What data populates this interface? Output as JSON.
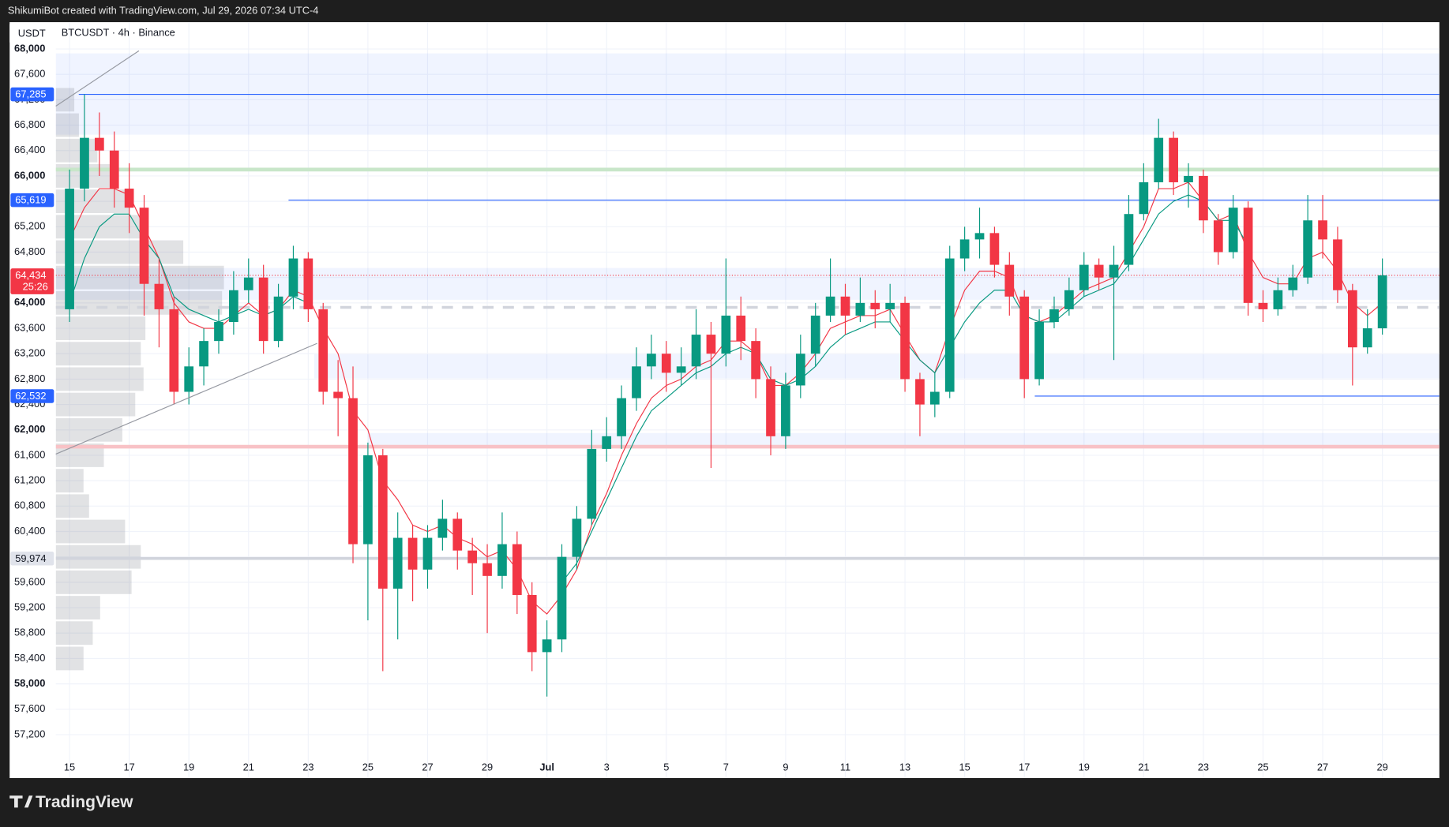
{
  "header": {
    "caption": "ShikumiBot created with TradingView.com, Jul 29, 2026 07:34 UTC-4",
    "currency": "USDT",
    "symbol": "BTCUSDT · 4h · Binance"
  },
  "footer": {
    "brand": "TradingView"
  },
  "chart_data": {
    "type": "candlestick",
    "up_color": "#089981",
    "down_color": "#f23645",
    "xlim": [
      -0.46,
      45.91
    ],
    "ylim": [
      56516,
      68422
    ],
    "grid": true,
    "xticks": [
      {
        "value": 0,
        "label": "15"
      },
      {
        "value": 2,
        "label": "17"
      },
      {
        "value": 4,
        "label": "19"
      },
      {
        "value": 6,
        "label": "21"
      },
      {
        "value": 8,
        "label": "23"
      },
      {
        "value": 10,
        "label": "25"
      },
      {
        "value": 12,
        "label": "27"
      },
      {
        "value": 14,
        "label": "29"
      },
      {
        "value": 16,
        "label": "Jul"
      },
      {
        "value": 18,
        "label": "3"
      },
      {
        "value": 20,
        "label": "5"
      },
      {
        "value": 22,
        "label": "7"
      },
      {
        "value": 24,
        "label": "9"
      },
      {
        "value": 26,
        "label": "11"
      },
      {
        "value": 28,
        "label": "13"
      },
      {
        "value": 30,
        "label": "15"
      },
      {
        "value": 32,
        "label": "17"
      },
      {
        "value": 34,
        "label": "19"
      },
      {
        "value": 36,
        "label": "21"
      },
      {
        "value": 38,
        "label": "23"
      },
      {
        "value": 40,
        "label": "25"
      },
      {
        "value": 42,
        "label": "27"
      },
      {
        "value": 44,
        "label": "29"
      }
    ],
    "yticks": [
      {
        "value": 57200,
        "label": "57,200"
      },
      {
        "value": 57600,
        "label": "57,600"
      },
      {
        "value": 58000,
        "label": "58,000"
      },
      {
        "value": 58400,
        "label": "58,400"
      },
      {
        "value": 58800,
        "label": "58,800"
      },
      {
        "value": 59200,
        "label": "59,200"
      },
      {
        "value": 59600,
        "label": "59,600"
      },
      {
        "value": 60000,
        "label": "60,000"
      },
      {
        "value": 60400,
        "label": "60,400"
      },
      {
        "value": 60800,
        "label": "60,800"
      },
      {
        "value": 61200,
        "label": "61,200"
      },
      {
        "value": 61600,
        "label": "61,600"
      },
      {
        "value": 62000,
        "label": "62,000"
      },
      {
        "value": 62400,
        "label": "62,400"
      },
      {
        "value": 62800,
        "label": "62,800"
      },
      {
        "value": 63200,
        "label": "63,200"
      },
      {
        "value": 63600,
        "label": "63,600"
      },
      {
        "value": 64000,
        "label": "64,000"
      },
      {
        "value": 64400,
        "label": "64,400"
      },
      {
        "value": 64800,
        "label": "64,800"
      },
      {
        "value": 65200,
        "label": "65,200"
      },
      {
        "value": 65600,
        "label": "65,600"
      },
      {
        "value": 66000,
        "label": "66,000"
      },
      {
        "value": 66400,
        "label": "66,400"
      },
      {
        "value": 66800,
        "label": "66,800"
      },
      {
        "value": 67200,
        "label": "67,200"
      },
      {
        "value": 67600,
        "label": "67,600"
      },
      {
        "value": 68000,
        "label": "68,000"
      }
    ],
    "x": [
      0,
      0.5,
      1,
      1.5,
      2,
      2.5,
      3,
      3.5,
      4,
      4.5,
      5,
      5.5,
      6,
      6.5,
      7,
      7.5,
      8,
      8.5,
      9,
      9.5,
      10,
      10.5,
      11,
      11.5,
      12,
      12.5,
      13,
      13.5,
      14,
      14.5,
      15,
      15.5,
      16,
      16.5,
      17,
      17.5,
      18,
      18.5,
      19,
      19.5,
      20,
      20.5,
      21,
      21.5,
      22,
      22.5,
      23,
      23.5,
      24,
      24.5,
      25,
      25.5,
      26,
      26.5,
      27,
      27.5,
      28,
      28.5,
      29,
      29.5,
      30,
      30.5,
      31,
      31.5,
      32,
      32.5,
      33,
      33.5,
      34,
      34.5,
      35,
      35.5,
      36,
      36.5,
      37,
      37.5,
      38,
      38.5,
      39,
      39.5,
      40,
      40.5,
      41,
      41.5,
      42,
      42.5,
      43,
      43.5,
      44
    ],
    "open": [
      63900,
      65800,
      66600,
      66400,
      65800,
      65500,
      64300,
      63900,
      62600,
      63000,
      63400,
      63700,
      64200,
      64400,
      63400,
      64100,
      64700,
      63900,
      62600,
      62500,
      60200,
      61600,
      59500,
      60300,
      59800,
      60300,
      60600,
      60100,
      59900,
      59700,
      60200,
      59400,
      58500,
      58700,
      60000,
      60600,
      61700,
      61900,
      62500,
      63000,
      63200,
      62900,
      63000,
      63500,
      63200,
      63800,
      63400,
      62800,
      61900,
      62700,
      63200,
      63800,
      64100,
      63800,
      64000,
      63900,
      64000,
      62800,
      62400,
      62600,
      64700,
      65000,
      65100,
      64600,
      64100,
      62800,
      63700,
      63900,
      64200,
      64600,
      64400,
      64600,
      65400,
      65900,
      66600,
      65900,
      66000,
      65300,
      64800,
      65500,
      64000,
      63900,
      64200,
      64400,
      65300,
      65000,
      64200,
      63300,
      63600
    ],
    "high": [
      66100,
      67285,
      67000,
      66700,
      66200,
      65700,
      64700,
      64100,
      63300,
      63600,
      63900,
      64500,
      64700,
      64600,
      64300,
      64900,
      64800,
      64000,
      63100,
      63000,
      61800,
      61700,
      60700,
      60500,
      60500,
      60900,
      60700,
      60300,
      60200,
      60700,
      60400,
      59600,
      59000,
      60200,
      60800,
      62000,
      62200,
      62700,
      63300,
      63500,
      63400,
      63300,
      63900,
      63700,
      64700,
      64100,
      63600,
      63000,
      62900,
      63500,
      64000,
      64700,
      64300,
      64400,
      64200,
      64300,
      64100,
      62900,
      62900,
      64900,
      65200,
      65500,
      65200,
      64800,
      64200,
      63900,
      64100,
      64400,
      64800,
      64700,
      64900,
      65700,
      66200,
      66900,
      66700,
      66200,
      66100,
      65400,
      65700,
      65600,
      64200,
      64400,
      64600,
      65700,
      65700,
      65200,
      64300,
      63900,
      64700
    ],
    "low": [
      63700,
      65600,
      66000,
      65500,
      65100,
      63800,
      63300,
      62400,
      62400,
      62700,
      63200,
      63500,
      64000,
      63200,
      63300,
      63900,
      63700,
      62400,
      61900,
      59900,
      59000,
      58200,
      58700,
      59300,
      59500,
      60100,
      59800,
      59400,
      58800,
      59500,
      59100,
      58200,
      57800,
      58500,
      59800,
      60500,
      61500,
      61700,
      62300,
      62800,
      62600,
      62700,
      62800,
      61400,
      63000,
      63100,
      62500,
      61600,
      61700,
      62500,
      63000,
      63700,
      63500,
      63700,
      63600,
      63700,
      62600,
      61900,
      62200,
      62500,
      64500,
      64700,
      64400,
      63800,
      62500,
      62700,
      63600,
      63800,
      64100,
      64200,
      63100,
      64500,
      65300,
      65800,
      65700,
      65500,
      65100,
      64600,
      64700,
      63800,
      63700,
      63800,
      64100,
      64300,
      64700,
      64000,
      62700,
      63200,
      63500
    ],
    "close": [
      65800,
      66600,
      66400,
      65800,
      65500,
      64300,
      63900,
      62600,
      63000,
      63400,
      63700,
      64200,
      64400,
      63400,
      64100,
      64700,
      63900,
      62600,
      62500,
      60200,
      61600,
      59500,
      60300,
      59800,
      60300,
      60600,
      60100,
      59900,
      59700,
      60200,
      59400,
      58500,
      58700,
      60000,
      60600,
      61700,
      61900,
      62500,
      63000,
      63200,
      62900,
      63000,
      63500,
      63200,
      63800,
      63400,
      62800,
      61900,
      62700,
      63200,
      63800,
      64100,
      63800,
      64000,
      63900,
      64000,
      62800,
      62400,
      62600,
      64700,
      65000,
      65100,
      64600,
      64100,
      62800,
      63700,
      63900,
      64200,
      64600,
      64400,
      64600,
      65400,
      65900,
      66600,
      65900,
      66000,
      65300,
      64800,
      65500,
      64000,
      63900,
      64200,
      64400,
      65300,
      65000,
      64200,
      63300,
      63600,
      64434
    ],
    "moving_averages": [
      {
        "color": "#f23645",
        "values": [
          65000,
          65500,
          65800,
          65800,
          65700,
          65200,
          64700,
          64000,
          63700,
          63600,
          63600,
          63800,
          64000,
          63800,
          63900,
          64200,
          64100,
          63600,
          63200,
          62300,
          62000,
          61200,
          60900,
          60500,
          60400,
          60500,
          60300,
          60200,
          60000,
          60100,
          59800,
          59300,
          59100,
          59400,
          59800,
          60500,
          61000,
          61600,
          62100,
          62500,
          62700,
          62800,
          63000,
          63100,
          63400,
          63400,
          63200,
          62700,
          62700,
          62900,
          63200,
          63600,
          63700,
          63800,
          63800,
          63900,
          63500,
          63100,
          62900,
          63600,
          64200,
          64500,
          64500,
          64400,
          63800,
          63700,
          63800,
          64000,
          64200,
          64300,
          64400,
          64800,
          65200,
          65800,
          65800,
          65900,
          65600,
          65300,
          65400,
          64800,
          64400,
          64300,
          64300,
          64700,
          64800,
          64500,
          64000,
          63800,
          64000
        ]
      },
      {
        "color": "#089981",
        "values": [
          64000,
          64700,
          65200,
          65400,
          65400,
          65000,
          64700,
          64100,
          63900,
          63800,
          63700,
          63800,
          63900,
          63800,
          63900,
          64100,
          64000,
          null,
          null,
          null,
          null,
          null,
          null,
          null,
          null,
          null,
          null,
          null,
          null,
          null,
          null,
          null,
          null,
          59600,
          59900,
          60400,
          60900,
          61400,
          61900,
          62300,
          62500,
          62700,
          62900,
          63000,
          63200,
          63300,
          63200,
          62800,
          62700,
          62800,
          63000,
          63300,
          63500,
          63600,
          63700,
          63700,
          63400,
          63100,
          62900,
          63300,
          63700,
          64000,
          64200,
          64200,
          63800,
          63700,
          63700,
          63900,
          64100,
          64200,
          64300,
          64600,
          65000,
          65400,
          65600,
          65700,
          65600,
          65300,
          65300,
          64900,
          null,
          null,
          null,
          null,
          null,
          null,
          null,
          null,
          null
        ]
      }
    ],
    "volume_profile": {
      "prices": [
        58400,
        58800,
        59200,
        59600,
        60000,
        60400,
        60800,
        61200,
        61600,
        62000,
        62400,
        62800,
        63200,
        63600,
        64000,
        64400,
        64800,
        65200,
        65600,
        66000,
        66400,
        66800,
        67200
      ],
      "values": [
        30,
        40,
        48,
        82,
        92,
        75,
        36,
        30,
        52,
        72,
        86,
        95,
        92,
        97,
        180,
        182,
        138,
        100,
        80,
        60,
        45,
        25,
        20
      ]
    },
    "zones": [
      {
        "from": 66650,
        "to": 67930,
        "start": -0.46
      },
      {
        "from": 64050,
        "to": 64550,
        "start": -0.46
      },
      {
        "from": 62810,
        "to": 63190,
        "start": 8.2
      },
      {
        "from": 61750,
        "to": 61950,
        "start": 10
      }
    ],
    "h_lines": [
      {
        "value": 66100,
        "color": "#c8e6c9",
        "width": 4,
        "dash": "none"
      },
      {
        "value": 61735,
        "color": "#f8c2c6",
        "width": 4,
        "dash": "none"
      },
      {
        "value": 63930,
        "color": "#d1d4dc",
        "width": 3,
        "dash": "12 10"
      },
      {
        "value": 59974,
        "color": "#d1d4dc",
        "width": 3,
        "dash": "none"
      }
    ],
    "price_lines": [
      {
        "value": 67285,
        "label": "67,285",
        "color": "#2962ff",
        "start": 0.31
      },
      {
        "value": 65619,
        "label": "65,619",
        "color": "#2962ff",
        "start": 7.34
      },
      {
        "value": 62532,
        "label": "62,532",
        "color": "#2962ff",
        "start": 32.35
      }
    ],
    "gray_label": {
      "value": 59974,
      "label": "59,974"
    },
    "last_price": {
      "value": 64434,
      "label": "64,434",
      "countdown": "25:26",
      "color": "#f23645"
    }
  }
}
